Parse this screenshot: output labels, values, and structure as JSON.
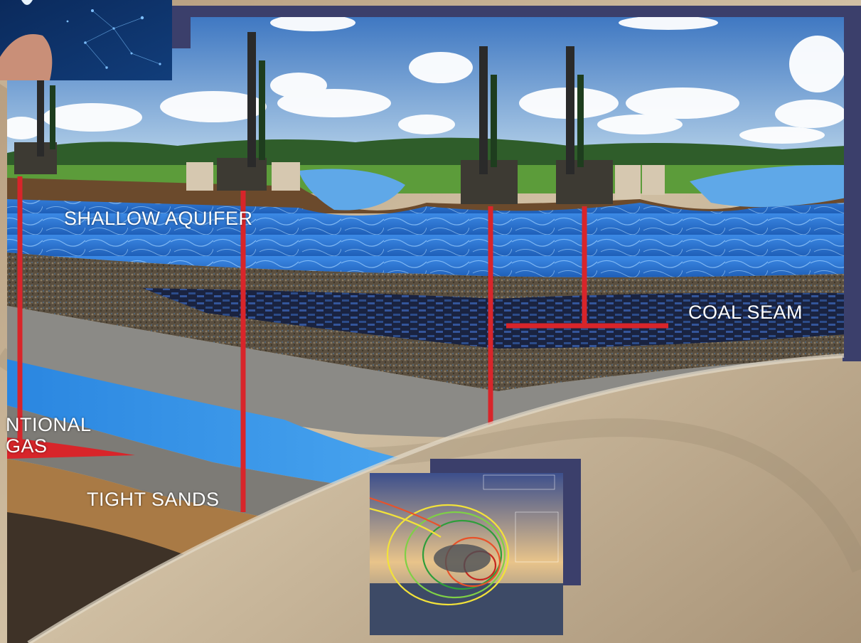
{
  "labels": {
    "shallow_aquifer": "SHALLOW AQUIFER",
    "coal_seam": "COAL SEAM",
    "tight_sands": "TIGHT SANDS",
    "conventional_line1": "NTIONAL",
    "conventional_line2": "GAS"
  },
  "colors": {
    "sky": "#4f86c6",
    "grass": "#5c9c3a",
    "aquifer": "#2f7bd8",
    "coal": "#1f2a48",
    "rock": "#6b5e4a",
    "shale": "#8b8a86",
    "sand": "#a97a45",
    "well": "#d8252a",
    "frame": "#3b3f6b",
    "background_sand": "#c2ae92"
  },
  "icons": {
    "top_left": "lightbulb-network-icon",
    "inset": "wind-turbine-simulation-icon"
  }
}
